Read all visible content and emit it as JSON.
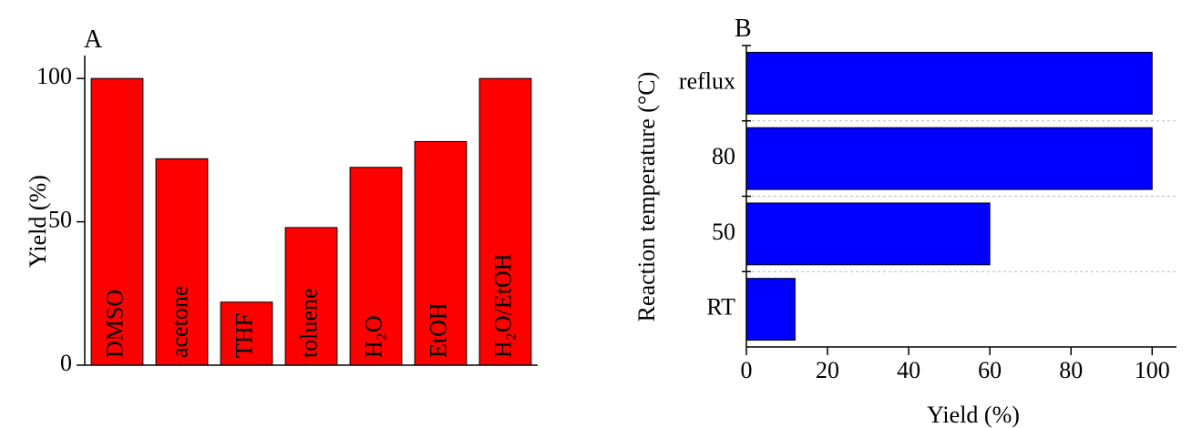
{
  "chart_data": [
    {
      "type": "bar",
      "title": "A",
      "ylabel": "Yield (%)",
      "categories": [
        "DMSO",
        "acetone",
        "THF",
        "toluene",
        "H₂O",
        "EtOH",
        "H₂O/EtOH"
      ],
      "values": [
        100,
        72,
        22,
        48,
        69,
        78,
        100
      ],
      "color": "#ff0000",
      "ylim": [
        0,
        108
      ],
      "yticks": [
        0,
        50,
        100
      ]
    },
    {
      "type": "barh",
      "title": "B",
      "ylabel": "Reaction temperature (°C)",
      "xlabel": "Yield (%)",
      "categories": [
        "RT",
        "50",
        "80",
        "reflux"
      ],
      "values": [
        12,
        60,
        100,
        100
      ],
      "color": "#0000ff",
      "xlim": [
        0,
        106
      ],
      "xticks": [
        0,
        20,
        40,
        60,
        80,
        100
      ]
    }
  ]
}
